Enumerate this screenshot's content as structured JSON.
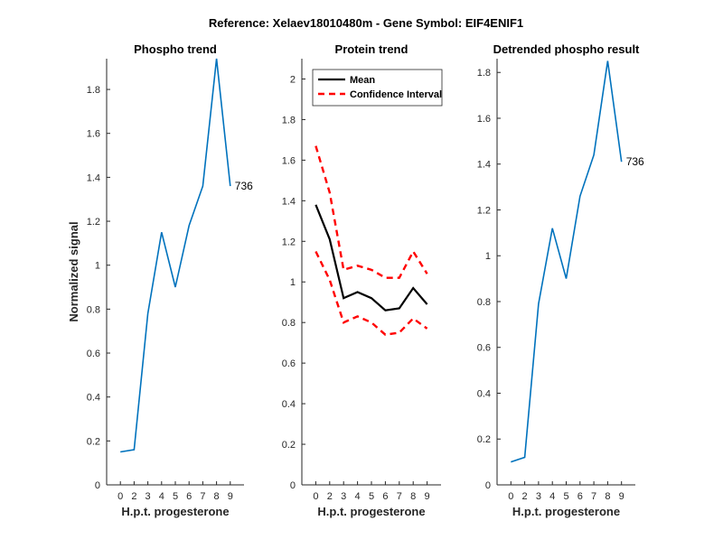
{
  "figure": {
    "suptitle": "Reference:  Xelaev18010480m - Gene Symbol:  EIF4ENIF1"
  },
  "chart_data": [
    {
      "type": "line",
      "title": "Phospho trend",
      "xlabel": "H.p.t. progesterone",
      "ylabel": "Normalized signal",
      "categories": [
        "0",
        "2",
        "3",
        "4",
        "5",
        "6",
        "7",
        "8",
        "9"
      ],
      "series": [
        {
          "values": [
            0.15,
            0.16,
            0.78,
            1.15,
            0.9,
            1.18,
            1.36,
            1.94,
            1.36
          ],
          "color": "#0072BD"
        }
      ],
      "end_label": "736",
      "ylim": [
        0,
        1.94
      ],
      "yticks": [
        0,
        0.2,
        0.4,
        0.6,
        0.8,
        1,
        1.2,
        1.4,
        1.6,
        1.8
      ]
    },
    {
      "type": "line",
      "title": "Protein trend",
      "xlabel": "H.p.t. progesterone",
      "categories": [
        "0",
        "2",
        "3",
        "4",
        "5",
        "6",
        "7",
        "8",
        "9"
      ],
      "series": [
        {
          "name": "Mean",
          "values": [
            1.38,
            1.21,
            0.92,
            0.95,
            0.92,
            0.86,
            0.87,
            0.97,
            0.89
          ],
          "color": "#000000",
          "dashed": false
        },
        {
          "name": "Confidence Interval",
          "values": [
            1.67,
            1.44,
            1.06,
            1.08,
            1.06,
            1.02,
            1.02,
            1.15,
            1.04
          ],
          "color": "#FF0000",
          "dashed": true
        },
        {
          "values": [
            1.15,
            1.01,
            0.8,
            0.83,
            0.8,
            0.74,
            0.75,
            0.82,
            0.77
          ],
          "color": "#FF0000",
          "dashed": true
        }
      ],
      "legend": {
        "placement": "top-left"
      },
      "ylim": [
        0,
        2.1
      ],
      "yticks": [
        0,
        0.2,
        0.4,
        0.6,
        0.8,
        1,
        1.2,
        1.4,
        1.6,
        1.8,
        2
      ]
    },
    {
      "type": "line",
      "title": "Detrended phospho result",
      "xlabel": "H.p.t. progesterone",
      "categories": [
        "0",
        "2",
        "3",
        "4",
        "5",
        "6",
        "7",
        "8",
        "9"
      ],
      "series": [
        {
          "values": [
            0.1,
            0.12,
            0.79,
            1.12,
            0.9,
            1.26,
            1.44,
            1.85,
            1.41
          ],
          "color": "#0072BD"
        }
      ],
      "end_label": "736",
      "ylim": [
        0,
        1.86
      ],
      "yticks": [
        0,
        0.2,
        0.4,
        0.6,
        0.8,
        1,
        1.2,
        1.4,
        1.6,
        1.8
      ]
    }
  ]
}
